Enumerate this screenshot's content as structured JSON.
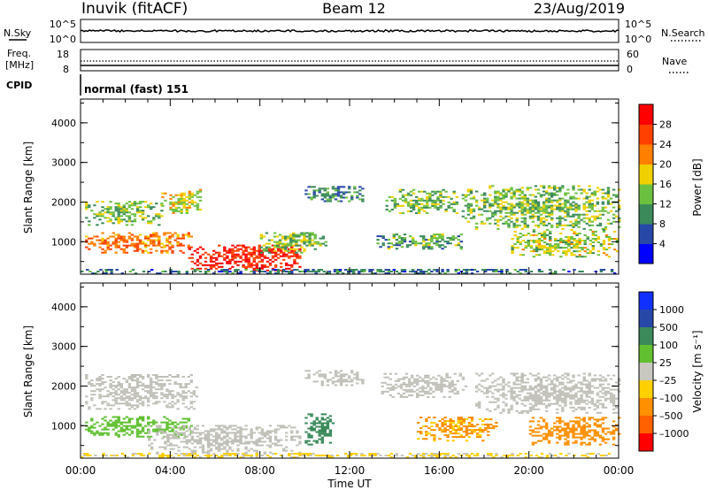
{
  "header": {
    "station": "Inuvik (fitACF)",
    "beam": "Beam 12",
    "date": "23/Aug/2019"
  },
  "strip_labels": {
    "nsky": "N.Sky",
    "nsearch": "N.Search",
    "freq_line1": "Freq.",
    "freq_line2": "[MHz]",
    "nave": "Nave",
    "cpid": "CPID",
    "cpid_value": "normal (fast) 151"
  },
  "strip_ticks": {
    "noise_left": [
      "10^5",
      "10^0"
    ],
    "noise_right": [
      "10^5",
      "10^0"
    ],
    "freq_left": [
      "18",
      "8"
    ],
    "freq_right": [
      "60",
      "0"
    ]
  },
  "colors": {
    "power_scale": [
      "#0000ff",
      "#2848a8",
      "#3a8a5a",
      "#6cc040",
      "#f0d000",
      "#ff8000",
      "#ff4000",
      "#ff0000"
    ],
    "velocity_scale": [
      "#ff0000",
      "#ff6000",
      "#ff9000",
      "#ffd000",
      "#c8c8c0",
      "#60c030",
      "#3a8a5a",
      "#2848a8",
      "#1030ff"
    ],
    "ground_scatter": "#c0c0b8"
  },
  "chart_data": [
    {
      "type": "heatmap",
      "panel": "power",
      "xlabel": "",
      "ylabel": "Slant Range [km]",
      "x_range_hours": [
        0,
        24
      ],
      "x_ticks": [
        "00:00",
        "04:00",
        "08:00",
        "12:00",
        "16:00",
        "20:00",
        "00:00"
      ],
      "ylim": [
        180,
        4600
      ],
      "y_ticks": [
        "1000",
        "2000",
        "3000",
        "4000"
      ],
      "colorbar": {
        "label": "Power [dB]",
        "range": [
          0,
          32
        ],
        "ticks": [
          "4",
          "8",
          "12",
          "16",
          "20",
          "24",
          "28"
        ]
      },
      "echo_regions": [
        {
          "t0": 0.2,
          "t1": 5.0,
          "r0": 700,
          "r1": 1200,
          "level": 23
        },
        {
          "t0": 0.2,
          "t1": 3.6,
          "r0": 1400,
          "r1": 2000,
          "level": 14
        },
        {
          "t0": 3.6,
          "t1": 5.4,
          "r0": 1700,
          "r1": 2300,
          "level": 17
        },
        {
          "t0": 4.8,
          "t1": 9.8,
          "r0": 250,
          "r1": 900,
          "level": 29
        },
        {
          "t0": 8.0,
          "t1": 11.0,
          "r0": 700,
          "r1": 1200,
          "level": 14
        },
        {
          "t0": 10.0,
          "t1": 12.6,
          "r0": 2000,
          "r1": 2400,
          "level": 10
        },
        {
          "t0": 13.6,
          "t1": 16.8,
          "r0": 1700,
          "r1": 2300,
          "level": 13
        },
        {
          "t0": 13.2,
          "t1": 17.0,
          "r0": 800,
          "r1": 1200,
          "level": 12
        },
        {
          "t0": 17.0,
          "t1": 24.0,
          "r0": 1300,
          "r1": 2400,
          "level": 14
        },
        {
          "t0": 19.2,
          "t1": 24.0,
          "r0": 600,
          "r1": 1300,
          "level": 16
        },
        {
          "t0": 0.0,
          "t1": 24.0,
          "r0": 180,
          "r1": 300,
          "level": 8
        }
      ]
    },
    {
      "type": "heatmap",
      "panel": "velocity",
      "xlabel": "Time UT",
      "ylabel": "Slant Range [km]",
      "x_range_hours": [
        0,
        24
      ],
      "x_ticks": [
        "00:00",
        "04:00",
        "08:00",
        "12:00",
        "16:00",
        "20:00",
        "00:00"
      ],
      "ylim": [
        180,
        4600
      ],
      "y_ticks": [
        "1000",
        "2000",
        "3000",
        "4000"
      ],
      "colorbar": {
        "label": "Velocity [m s⁻¹]",
        "ticks": [
          "1000",
          "500",
          "100",
          "25",
          "–25",
          "–100",
          "–500",
          "–1000"
        ]
      },
      "echo_regions": [
        {
          "t0": 0.2,
          "t1": 5.2,
          "r0": 1400,
          "r1": 2300,
          "velocity": 0,
          "ground_scatter": true
        },
        {
          "t0": 0.2,
          "t1": 5.0,
          "r0": 700,
          "r1": 1200,
          "velocity": 60
        },
        {
          "t0": 3.0,
          "t1": 9.8,
          "r0": 300,
          "r1": 1000,
          "velocity": 0,
          "ground_scatter": true
        },
        {
          "t0": 10.0,
          "t1": 11.2,
          "r0": 500,
          "r1": 1300,
          "velocity": 200
        },
        {
          "t0": 10.0,
          "t1": 12.6,
          "r0": 2000,
          "r1": 2400,
          "velocity": 0,
          "ground_scatter": true
        },
        {
          "t0": 13.4,
          "t1": 17.2,
          "r0": 1700,
          "r1": 2300,
          "velocity": 0,
          "ground_scatter": true
        },
        {
          "t0": 15.0,
          "t1": 18.5,
          "r0": 600,
          "r1": 1200,
          "velocity": -120
        },
        {
          "t0": 17.6,
          "t1": 24.0,
          "r0": 1300,
          "r1": 2300,
          "velocity": 0,
          "ground_scatter": true
        },
        {
          "t0": 20.0,
          "t1": 24.0,
          "r0": 500,
          "r1": 1200,
          "velocity": -300
        },
        {
          "t0": 0.0,
          "t1": 24.0,
          "r0": 180,
          "r1": 300,
          "velocity": -30
        }
      ]
    }
  ]
}
